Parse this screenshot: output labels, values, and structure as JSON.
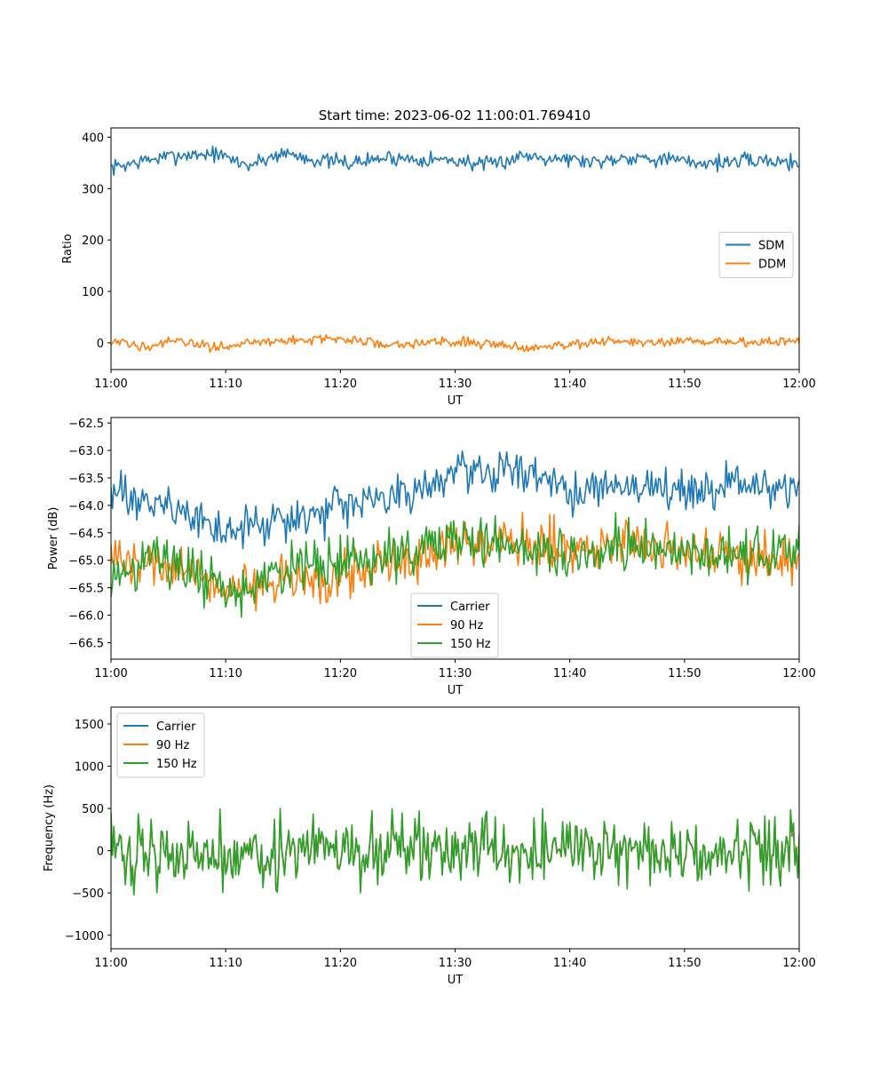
{
  "title": "Start time: 2023-06-02 11:00:01.769410",
  "chart_data": [
    {
      "type": "line",
      "xlabel": "UT",
      "ylabel": "Ratio",
      "xticks": [
        "11:00",
        "11:10",
        "11:20",
        "11:30",
        "11:40",
        "11:50",
        "12:00"
      ],
      "xlim": [
        "11:00",
        "12:00"
      ],
      "yticks": [
        0,
        100,
        200,
        300,
        400
      ],
      "ylim": [
        -52,
        418
      ],
      "legend": "center-right",
      "series": [
        {
          "name": "SDM",
          "color": "#1f77b4",
          "x": [
            "11:00",
            "11:03",
            "11:06",
            "11:09",
            "11:12",
            "11:15",
            "11:18",
            "11:21",
            "11:24",
            "11:27",
            "11:30",
            "11:33",
            "11:36",
            "11:39",
            "11:42",
            "11:45",
            "11:48",
            "11:51",
            "11:54",
            "11:57",
            "12:00"
          ],
          "values": [
            340,
            355,
            365,
            368,
            345,
            370,
            355,
            350,
            360,
            358,
            355,
            345,
            365,
            360,
            352,
            362,
            358,
            350,
            352,
            355,
            350
          ],
          "noise": 14
        },
        {
          "name": "DDM",
          "color": "#ff7f0e",
          "x": [
            "11:00",
            "11:03",
            "11:06",
            "11:09",
            "11:12",
            "11:15",
            "11:18",
            "11:21",
            "11:24",
            "11:27",
            "11:30",
            "11:33",
            "11:36",
            "11:39",
            "11:42",
            "11:45",
            "11:48",
            "11:51",
            "11:54",
            "11:57",
            "12:00"
          ],
          "values": [
            0,
            -5,
            2,
            -8,
            0,
            3,
            8,
            5,
            -2,
            0,
            2,
            0,
            -10,
            -3,
            0,
            2,
            0,
            2,
            3,
            0,
            5
          ],
          "noise": 9
        }
      ]
    },
    {
      "type": "line",
      "xlabel": "UT",
      "ylabel": "Power (dB)",
      "xticks": [
        "11:00",
        "11:10",
        "11:20",
        "11:30",
        "11:40",
        "11:50",
        "12:00"
      ],
      "xlim": [
        "11:00",
        "12:00"
      ],
      "yticks": [
        "-62.5",
        "-63.0",
        "-63.5",
        "-64.0",
        "-64.5",
        "-65.0",
        "-65.5",
        "-66.0",
        "-66.5"
      ],
      "ylim": [
        -66.8,
        -62.4
      ],
      "legend": "lower-center",
      "series": [
        {
          "name": "Carrier",
          "color": "#1f77b4",
          "x": [
            "11:00",
            "11:05",
            "11:10",
            "11:15",
            "11:20",
            "11:25",
            "11:30",
            "11:35",
            "11:40",
            "11:45",
            "11:50",
            "11:55",
            "12:00"
          ],
          "values": [
            -63.8,
            -64.0,
            -64.5,
            -64.3,
            -64.1,
            -63.8,
            -63.4,
            -63.3,
            -63.8,
            -63.6,
            -63.7,
            -63.6,
            -63.7
          ],
          "noise": 0.35
        },
        {
          "name": "90 Hz",
          "color": "#ff7f0e",
          "x": [
            "11:00",
            "11:05",
            "11:10",
            "11:15",
            "11:20",
            "11:25",
            "11:30",
            "11:35",
            "11:40",
            "11:45",
            "11:50",
            "11:55",
            "12:00"
          ],
          "values": [
            -65.0,
            -65.1,
            -65.5,
            -65.4,
            -65.3,
            -65.0,
            -64.7,
            -64.6,
            -64.8,
            -64.7,
            -64.9,
            -64.9,
            -65.0
          ],
          "noise": 0.4
        },
        {
          "name": "150 Hz",
          "color": "#2ca02c",
          "x": [
            "11:00",
            "11:05",
            "11:10",
            "11:15",
            "11:20",
            "11:25",
            "11:30",
            "11:35",
            "11:40",
            "11:45",
            "11:50",
            "11:55",
            "12:00"
          ],
          "values": [
            -65.2,
            -65.0,
            -65.6,
            -65.2,
            -65.0,
            -64.9,
            -64.7,
            -64.7,
            -64.9,
            -64.7,
            -64.9,
            -64.9,
            -64.9
          ],
          "noise": 0.45
        }
      ]
    },
    {
      "type": "line",
      "xlabel": "UT",
      "ylabel": "Frequency (Hz)",
      "xticks": [
        "11:00",
        "11:10",
        "11:20",
        "11:30",
        "11:40",
        "11:50",
        "12:00"
      ],
      "xlim": [
        "11:00",
        "12:00"
      ],
      "yticks": [
        -1000,
        -500,
        0,
        500,
        1000,
        1500
      ],
      "ylim": [
        -1160,
        1700
      ],
      "legend": "upper-left",
      "series": [
        {
          "name": "Carrier",
          "color": "#1f77b4",
          "x": [
            "11:00",
            "12:00"
          ],
          "values": [
            0,
            0
          ],
          "noise": 380
        },
        {
          "name": "90 Hz",
          "color": "#ff7f0e",
          "x": [
            "11:00",
            "12:00"
          ],
          "values": [
            0,
            0
          ],
          "noise": 380
        },
        {
          "name": "150 Hz",
          "color": "#2ca02c",
          "x": [
            "11:00",
            "12:00"
          ],
          "values": [
            0,
            0
          ],
          "noise": 380
        }
      ]
    }
  ]
}
